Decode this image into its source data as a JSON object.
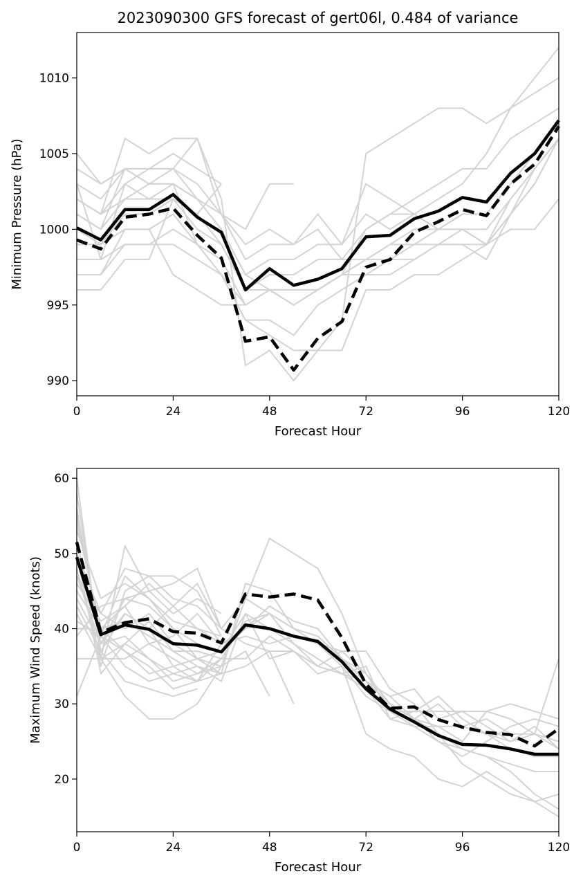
{
  "colors": {
    "member": "#d3d3d3",
    "mean": "#000000",
    "weighted": "#000000",
    "frame": "#000000"
  },
  "chart_data": [
    {
      "type": "line",
      "title": "2023090300 GFS forecast of gert06l, 0.484 of variance",
      "xlabel": "Forecast Hour",
      "ylabel": "Minimum Pressure (hPa)",
      "xlim": [
        0,
        120
      ],
      "ylim": [
        989,
        1013
      ],
      "xticks": [
        "0",
        "24",
        "48",
        "72",
        "96",
        "120"
      ],
      "xtick_values": [
        0,
        24,
        48,
        72,
        96,
        120
      ],
      "yticks": [
        "990",
        "995",
        "1000",
        "1005",
        "1010"
      ],
      "ytick_values": [
        990,
        995,
        1000,
        1005,
        1010
      ],
      "grid": false,
      "x": [
        0,
        6,
        12,
        18,
        24,
        30,
        36,
        42,
        48,
        54,
        60,
        66,
        72,
        78,
        84,
        90,
        96,
        102,
        108,
        114,
        120
      ],
      "series": [
        {
          "style": "solid",
          "values": [
            1000.1,
            999.3,
            1001.3,
            1001.3,
            1002.3,
            1000.8,
            999.8,
            996.0,
            997.4,
            996.3,
            996.7,
            997.4,
            999.5,
            999.6,
            1000.7,
            1001.2,
            1002.1,
            1001.8,
            1003.7,
            1005.0,
            1007.2
          ]
        },
        {
          "style": "dashed",
          "values": [
            999.3,
            998.7,
            1000.8,
            1001.0,
            1001.4,
            999.6,
            998.1,
            992.6,
            992.9,
            990.7,
            992.8,
            993.9,
            997.5,
            998.0,
            999.8,
            1000.5,
            1001.3,
            1000.9,
            1003.0,
            1004.3,
            1006.8
          ]
        }
      ],
      "members": [
        [
          1003,
          1002,
          1004,
          1004,
          1004,
          1003,
          1001,
          998,
          999,
          999,
          1001,
          999,
          1001,
          1000,
          1001,
          1002,
          1003,
          1005,
          1008,
          1010,
          1012
        ],
        [
          1002,
          1001,
          1003,
          1002,
          1003,
          1002,
          1000,
          997,
          996,
          996,
          996,
          997,
          1000,
          1001,
          1002,
          1003,
          1004,
          1004,
          1006,
          1007,
          1008
        ],
        [
          1001,
          1000,
          1002,
          1003,
          1003,
          1002,
          1001,
          999,
          1000,
          999,
          1000,
          998,
          1000,
          1001,
          1001,
          1000,
          1001,
          1001,
          1003,
          1005,
          1007
        ],
        [
          1000,
          999,
          1000,
          1000,
          1001,
          999,
          998,
          995,
          996,
          996,
          996,
          997,
          997,
          998,
          999,
          999,
          1000,
          999,
          1002,
          1004,
          1006
        ],
        [
          999,
          999,
          1001,
          1001,
          1002,
          1000,
          999,
          996,
          997,
          997,
          998,
          998,
          998,
          999,
          1000,
          1000,
          1001,
          1001,
          1003,
          1005,
          1007
        ],
        [
          998,
          998,
          999,
          999,
          1000,
          999,
          997,
          995,
          996,
          995,
          996,
          997,
          998,
          998,
          998,
          999,
          999,
          999,
          1000,
          1000,
          1002
        ],
        [
          1004,
          1003,
          1004,
          1003,
          1004,
          1002,
          1000,
          997,
          998,
          998,
          999,
          999,
          1003,
          1002,
          1001,
          1000,
          1000,
          999,
          1001,
          1003,
          1006
        ],
        [
          997,
          997,
          999,
          999,
          999,
          998,
          997,
          994,
          993,
          992,
          992,
          992,
          996,
          996,
          997,
          997,
          998,
          999,
          1001,
          1003,
          1006
        ],
        [
          1002,
          1001,
          1006,
          1005,
          1006,
          1006,
          1001,
          1000,
          1003,
          1003
        ],
        [
          1005,
          1003,
          1004,
          1004,
          1005,
          1004,
          1003
        ],
        [
          996,
          996,
          998,
          998,
          1002,
          1001,
          1003
        ],
        [
          997,
          997,
          1000,
          1000,
          997,
          996,
          995,
          995
        ],
        [
          1003,
          998,
          1003,
          1004,
          1004,
          1006,
          1002,
          991,
          992,
          990,
          992,
          994,
          1005,
          1006,
          1007,
          1008,
          1008,
          1007,
          1008,
          1009,
          1010
        ],
        [
          1001,
          1000,
          1004,
          1003,
          1003,
          999,
          997,
          994,
          994,
          993,
          995,
          996,
          997,
          997,
          998,
          999,
          999,
          998,
          1001,
          1004,
          1006
        ],
        [
          1002,
          1001,
          1002,
          1002,
          1002,
          1001,
          999,
          996,
          996,
          995,
          996,
          997,
          998,
          999,
          999,
          1000,
          1000,
          1000,
          1002,
          1004,
          1006
        ]
      ]
    },
    {
      "type": "line",
      "title": "",
      "xlabel": "Forecast Hour",
      "ylabel": "Maximum Wind Speed (knots)",
      "xlim": [
        0,
        120
      ],
      "ylim": [
        13,
        61.3
      ],
      "xticks": [
        "0",
        "24",
        "48",
        "72",
        "96",
        "120"
      ],
      "xtick_values": [
        0,
        24,
        48,
        72,
        96,
        120
      ],
      "yticks": [
        "20",
        "30",
        "40",
        "50",
        "60"
      ],
      "ytick_values": [
        20,
        30,
        40,
        50,
        60
      ],
      "grid": false,
      "x": [
        0,
        6,
        12,
        18,
        24,
        30,
        36,
        42,
        48,
        54,
        60,
        66,
        72,
        78,
        84,
        90,
        96,
        102,
        108,
        114,
        120
      ],
      "series": [
        {
          "style": "solid",
          "values": [
            49.5,
            39.2,
            40.5,
            39.9,
            38.0,
            37.8,
            36.9,
            40.5,
            40.0,
            39.0,
            38.3,
            35.6,
            32.0,
            29.3,
            27.6,
            25.8,
            24.6,
            24.5,
            24.0,
            23.3,
            23.3
          ]
        },
        {
          "style": "dashed",
          "values": [
            51.5,
            39.5,
            40.8,
            41.3,
            39.6,
            39.4,
            38.1,
            44.6,
            44.2,
            44.6,
            43.8,
            38.8,
            32.6,
            29.4,
            29.6,
            27.9,
            26.9,
            26.2,
            25.9,
            24.4,
            26.7
          ]
        }
      ],
      "members": [
        [
          60,
          36,
          51,
          45,
          46,
          48,
          40,
          44,
          52,
          50,
          48,
          42,
          34,
          30,
          28,
          27,
          25,
          29,
          30,
          29,
          28
        ],
        [
          58,
          37,
          42,
          40,
          35,
          36,
          34,
          46,
          45,
          40,
          38,
          35,
          31,
          29,
          29,
          31,
          28,
          26,
          25,
          27,
          24
        ],
        [
          56,
          38,
          44,
          43,
          40,
          38,
          37,
          40,
          42,
          40,
          39,
          36,
          33,
          30,
          28,
          26,
          24,
          23,
          21,
          18,
          16
        ],
        [
          55,
          39,
          47,
          44,
          40,
          36,
          37,
          42,
          36,
          37,
          35,
          37,
          37,
          32,
          30,
          26,
          22,
          20,
          18,
          17,
          15
        ],
        [
          54,
          40,
          43,
          46,
          43,
          40,
          38,
          39,
          38,
          39,
          38,
          36,
          34,
          30,
          28,
          25,
          23,
          25,
          27,
          28,
          27
        ],
        [
          52,
          35,
          45,
          47,
          44,
          43,
          40,
          38,
          37,
          37,
          34,
          35,
          26,
          24,
          23,
          20,
          19,
          21,
          19,
          17,
          18
        ],
        [
          50,
          34,
          38,
          41,
          37,
          35,
          33,
          42,
          40,
          38,
          36,
          34,
          32,
          28,
          29,
          29,
          29,
          29,
          28,
          26,
          24
        ],
        [
          48,
          36,
          36,
          38,
          36,
          34,
          36,
          36,
          39,
          37,
          35,
          34,
          35,
          28,
          27,
          27,
          27,
          28,
          26,
          26,
          36
        ],
        [
          47,
          42,
          40,
          42,
          38,
          36,
          35,
          44,
          42,
          38,
          35,
          34,
          33,
          31,
          32,
          28,
          29,
          27,
          25,
          26,
          25
        ],
        [
          46,
          41,
          43,
          38,
          39,
          42,
          38,
          40,
          43,
          41,
          40,
          36,
          33,
          31,
          28,
          30,
          27,
          26,
          24,
          23,
          23
        ],
        [
          45,
          40,
          41,
          39,
          37,
          37,
          36,
          41,
          42,
          40,
          38,
          37,
          34,
          29,
          27,
          25,
          24,
          23,
          22,
          21,
          21
        ],
        [
          44,
          38,
          39,
          36,
          33,
          34,
          35,
          37,
          31
        ],
        [
          43,
          37,
          33,
          32,
          31,
          32
        ],
        [
          42,
          36,
          31,
          28,
          28,
          30,
          35
        ],
        [
          41,
          39,
          35,
          33,
          34,
          35,
          34,
          35,
          37,
          30
        ],
        [
          40,
          40,
          37,
          35,
          32,
          33,
          36
        ],
        [
          39,
          43,
          44,
          45,
          42,
          44,
          42
        ],
        [
          36,
          36,
          38,
          36,
          34,
          33,
          38
        ],
        [
          31,
          39,
          37,
          34,
          35,
          33,
          34
        ],
        [
          53,
          44,
          46,
          44,
          41,
          40,
          39
        ],
        [
          50,
          42,
          48,
          47,
          47,
          45,
          39
        ],
        [
          47,
          38,
          42,
          40,
          43,
          46,
          40
        ]
      ]
    }
  ]
}
